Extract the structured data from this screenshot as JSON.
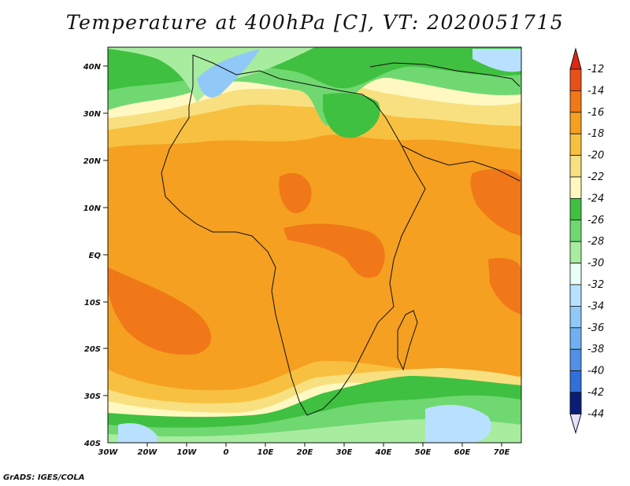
{
  "title": "Temperature at 400hPa [C], VT: 2020051715",
  "credit": "GrADS: IGES/COLA",
  "lat_labels": [
    "40N",
    "30N",
    "20N",
    "10N",
    "EQ",
    "10S",
    "20S",
    "30S",
    "40S"
  ],
  "lon_labels": [
    "30W",
    "20W",
    "10W",
    "0",
    "10E",
    "20E",
    "30E",
    "40E",
    "50E",
    "60E",
    "70E"
  ],
  "colorbar": {
    "labels": [
      "-12",
      "-14",
      "-16",
      "-18",
      "-20",
      "-22",
      "-24",
      "-26",
      "-28",
      "-30",
      "-32",
      "-34",
      "-36",
      "-38",
      "-40",
      "-42",
      "-44"
    ],
    "colors": [
      "#e8501a",
      "#f07818",
      "#f5a020",
      "#f8c040",
      "#f8e080",
      "#fff8c0",
      "#40c040",
      "#70d870",
      "#a8eca0",
      "#e8fff8",
      "#b8e0ff",
      "#90c8f8",
      "#70b0f0",
      "#5090e8",
      "#3070d8",
      "#1848b8",
      "#0a1e78"
    ],
    "top_arrow_color": "#e02810",
    "bottom_arrow_color": "#e8e0ff"
  }
}
